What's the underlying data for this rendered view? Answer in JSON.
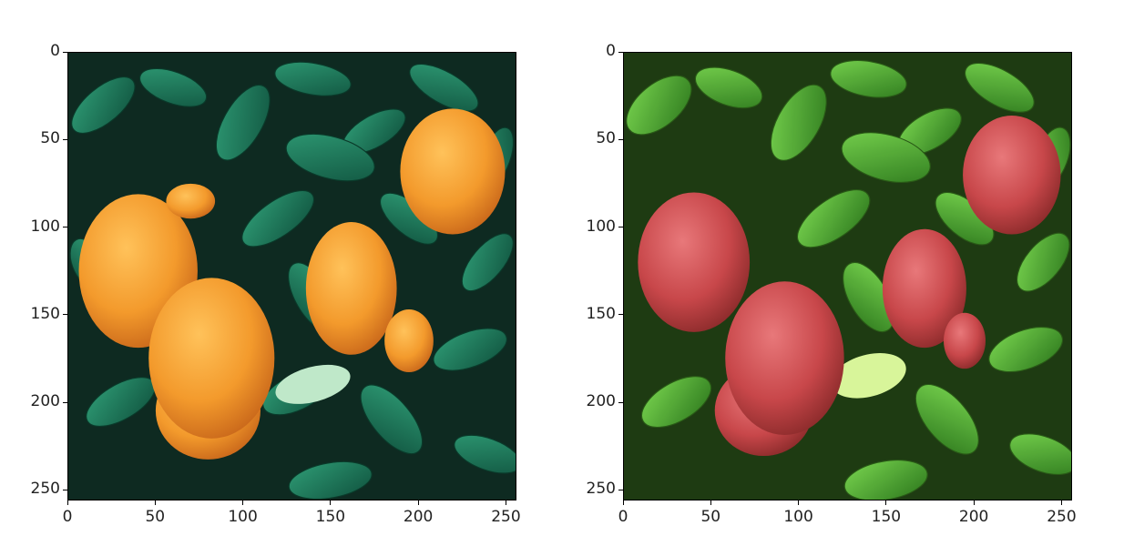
{
  "figure": {
    "panels": [
      {
        "id": "original",
        "subject": "photo of oranges among leaves",
        "fruit_color": "#f39a2c",
        "leaf_color": "#1f7a5b",
        "background_color": "#0e2a21",
        "x_ticks": [
          "0",
          "50",
          "100",
          "150",
          "200",
          "250"
        ],
        "y_ticks": [
          "0",
          "50",
          "100",
          "150",
          "200",
          "250"
        ]
      },
      {
        "id": "translated",
        "subject": "generated image: oranges rendered as red fruit with bright green leaves",
        "fruit_color": "#c8474a",
        "leaf_color": "#49b83a",
        "background_color": "#1e3b12",
        "x_ticks": [
          "0",
          "50",
          "100",
          "150",
          "200",
          "250"
        ],
        "y_ticks": [
          "0",
          "50",
          "100",
          "150",
          "200",
          "250"
        ]
      }
    ]
  }
}
